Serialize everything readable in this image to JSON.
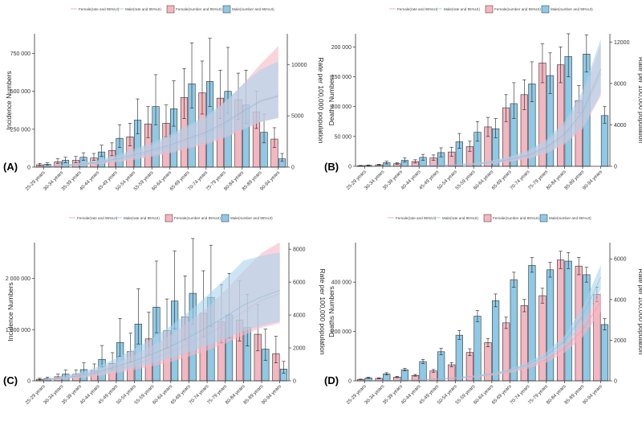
{
  "colors": {
    "female_bar": "#f4b6c0",
    "male_bar": "#8ec9e6",
    "female_band": "#f7b7c4",
    "male_band": "#a9d4ec",
    "bar_stroke": "#333333",
    "axis": "#333333"
  },
  "legend": {
    "female_rate": "Female(rate and 95%UI)",
    "male_rate": "Male(rate and 95%UI)",
    "female_number": "Female(number and 95%UI)",
    "male_number": "Male(number and 95%UI)"
  },
  "chart_data": [
    {
      "type": "bar",
      "panel_label": "(A)",
      "ylabel": "Incidence Numbers",
      "y2label": "Rate per 100,000 population",
      "categories": [
        "25-29 years",
        "30-34 years",
        "35-39 years",
        "40-44 years",
        "45-49 years",
        "50-54 years",
        "55-59 years",
        "60-64 years",
        "65-69 years",
        "70-74 years",
        "75-79 years",
        "80-84 years",
        "85-89 years",
        "90-94 years"
      ],
      "ylim": [
        0,
        880000
      ],
      "yticks": [
        0,
        250000,
        500000,
        750000
      ],
      "ytick_labels": [
        "0",
        "250 000",
        "500 000",
        "750 000"
      ],
      "y2lim": [
        0,
        13000
      ],
      "y2ticks": [
        0,
        5000,
        10000
      ],
      "y2tick_labels": [
        "0",
        "5000",
        "10000"
      ],
      "series": [
        {
          "name": "Female(number and 95%UI)",
          "values": [
            15000,
            35000,
            45000,
            60000,
            110000,
            200000,
            285000,
            290000,
            460000,
            490000,
            455000,
            445000,
            365000,
            185000
          ],
          "lower": [
            10000,
            25000,
            30000,
            45000,
            75000,
            140000,
            195000,
            200000,
            320000,
            350000,
            320000,
            315000,
            255000,
            130000
          ],
          "upper": [
            25000,
            55000,
            70000,
            90000,
            160000,
            290000,
            400000,
            410000,
            650000,
            700000,
            640000,
            620000,
            500000,
            260000
          ]
        },
        {
          "name": "Male(number and 95%UI)",
          "values": [
            18000,
            45000,
            65000,
            100000,
            190000,
            310000,
            400000,
            385000,
            550000,
            565000,
            500000,
            410000,
            230000,
            55000
          ],
          "lower": [
            12000,
            30000,
            45000,
            70000,
            130000,
            220000,
            280000,
            270000,
            390000,
            400000,
            355000,
            290000,
            160000,
            38000
          ],
          "upper": [
            28000,
            65000,
            95000,
            145000,
            280000,
            450000,
            610000,
            570000,
            820000,
            850000,
            790000,
            640000,
            350000,
            90000
          ]
        },
        {
          "name": "Female(rate and 95%UI)",
          "values": [
            50,
            120,
            220,
            380,
            650,
            1000,
            1450,
            1950,
            2600,
            3200,
            4100,
            5300,
            6500,
            7000
          ],
          "lower": [
            30,
            80,
            150,
            260,
            450,
            700,
            1000,
            1350,
            1800,
            2200,
            2800,
            3600,
            4400,
            4800
          ],
          "upper": [
            80,
            180,
            320,
            550,
            950,
            1500,
            2150,
            2900,
            3900,
            4800,
            6200,
            8000,
            10000,
            11800
          ]
        },
        {
          "name": "Male(rate and 95%UI)",
          "values": [
            60,
            150,
            280,
            470,
            800,
            1200,
            1650,
            2150,
            2800,
            3400,
            4300,
            5400,
            6400,
            6900
          ],
          "lower": [
            40,
            100,
            190,
            320,
            550,
            820,
            1130,
            1480,
            1930,
            2350,
            2950,
            3700,
            4400,
            4800
          ],
          "upper": [
            90,
            220,
            400,
            680,
            1150,
            1750,
            2400,
            3150,
            4100,
            5000,
            6300,
            8000,
            9500,
            10300
          ]
        }
      ]
    },
    {
      "type": "bar",
      "panel_label": "(B)",
      "ylabel": "Deaths Numbers",
      "y2label": "Rate per 100,000 population",
      "categories": [
        "25-29 years",
        "30-34 years",
        "35-39 years",
        "40-44 years",
        "45-49 years",
        "50-54 years",
        "55-59 years",
        "60-64 years",
        "65-69 years",
        "70-74 years",
        "75-79 years",
        "80-84 years",
        "85-89 years",
        "90-94 years"
      ],
      "ylim": [
        0,
        222000
      ],
      "yticks": [
        0,
        50000,
        100000,
        150000,
        200000
      ],
      "ytick_labels": [
        "0",
        "50 000",
        "100 000",
        "150 000",
        "200 000"
      ],
      "y2lim": [
        0,
        12800
      ],
      "y2ticks": [
        0,
        4000,
        8000,
        12000
      ],
      "y2tick_labels": [
        "0",
        "4000",
        "8000",
        "12000"
      ],
      "series": [
        {
          "name": "Female(number and 95%UI)",
          "values": [
            1000,
            2500,
            4500,
            8000,
            14000,
            24000,
            33000,
            66000,
            98000,
            120000,
            173000,
            170000,
            110000,
            0
          ],
          "lower": [
            600,
            1800,
            3200,
            5500,
            10000,
            17000,
            25000,
            50000,
            75000,
            95000,
            140000,
            140000,
            90000,
            0
          ],
          "upper": [
            1500,
            3500,
            6000,
            11000,
            19000,
            32000,
            42000,
            82000,
            120000,
            145000,
            205000,
            200000,
            135000,
            0
          ]
        },
        {
          "name": "Male(number and 95%UI)",
          "values": [
            1500,
            6000,
            10000,
            15000,
            23000,
            41000,
            57000,
            63000,
            105000,
            138000,
            152000,
            184000,
            188000,
            85000
          ],
          "lower": [
            1000,
            4000,
            7000,
            10000,
            16000,
            30000,
            42000,
            48000,
            80000,
            108000,
            122000,
            150000,
            158000,
            72000
          ],
          "upper": [
            2200,
            8500,
            14000,
            20000,
            31000,
            55000,
            75000,
            80000,
            140000,
            175000,
            190000,
            222000,
            220000,
            100000
          ]
        },
        {
          "name": "Female(rate and 95%UI)",
          "values": [
            5,
            10,
            20,
            40,
            70,
            120,
            200,
            350,
            600,
            1000,
            1700,
            2900,
            5000,
            9000
          ],
          "lower": [
            3,
            7,
            14,
            28,
            50,
            85,
            140,
            250,
            430,
            720,
            1220,
            2100,
            3600,
            6800
          ],
          "upper": [
            8,
            15,
            28,
            56,
            98,
            165,
            280,
            490,
            840,
            1400,
            2350,
            4000,
            6800,
            11800
          ]
        },
        {
          "name": "Male(rate and 95%UI)",
          "values": [
            6,
            12,
            25,
            48,
            85,
            140,
            230,
            400,
            680,
            1100,
            1850,
            3100,
            5300,
            9400
          ],
          "lower": [
            4,
            8,
            17,
            34,
            60,
            100,
            165,
            290,
            490,
            800,
            1330,
            2250,
            3800,
            7000
          ],
          "upper": [
            9,
            17,
            35,
            67,
            118,
            195,
            320,
            560,
            950,
            1540,
            2580,
            4300,
            7300,
            12300
          ]
        }
      ]
    },
    {
      "type": "bar",
      "panel_label": "(C)",
      "ylabel": "Incidence Numbers",
      "y2label": "Rate per 100,000 population",
      "categories": [
        "25-29 years",
        "30-34 years",
        "35-39 years",
        "40-44 years",
        "45-49 years",
        "50-54 years",
        "55-59 years",
        "60-64 years",
        "65-69 years",
        "70-74 years",
        "75-79 years",
        "80-84 years",
        "85-89 years",
        "90-94 years"
      ],
      "ylim": [
        0,
        2700000
      ],
      "yticks": [
        0,
        1000000,
        2000000
      ],
      "ytick_labels": [
        "0",
        "1 000 000",
        "2 000 000"
      ],
      "y2lim": [
        0,
        8400
      ],
      "y2ticks": [
        0,
        2000,
        4000,
        6000,
        8000
      ],
      "y2tick_labels": [
        "0",
        "2000",
        "4000",
        "6000",
        "8000"
      ],
      "series": [
        {
          "name": "Female(number and 95%UI)",
          "values": [
            30000,
            80000,
            130000,
            200000,
            340000,
            570000,
            820000,
            980000,
            1250000,
            1320000,
            1150000,
            1190000,
            910000,
            530000
          ],
          "lower": [
            18000,
            50000,
            80000,
            130000,
            220000,
            370000,
            520000,
            640000,
            800000,
            860000,
            740000,
            780000,
            590000,
            350000
          ],
          "upper": [
            50000,
            130000,
            210000,
            330000,
            550000,
            930000,
            1340000,
            1600000,
            2050000,
            2150000,
            1880000,
            1950000,
            1480000,
            870000
          ]
        },
        {
          "name": "Male(number and 95%UI)",
          "values": [
            45000,
            130000,
            220000,
            420000,
            750000,
            1110000,
            1440000,
            1560000,
            1710000,
            1630000,
            1290000,
            1040000,
            620000,
            230000
          ],
          "lower": [
            28000,
            80000,
            140000,
            270000,
            480000,
            720000,
            940000,
            1010000,
            1110000,
            1060000,
            840000,
            680000,
            400000,
            150000
          ],
          "upper": [
            72000,
            210000,
            350000,
            690000,
            1220000,
            1800000,
            2340000,
            2540000,
            2780000,
            2650000,
            2100000,
            1690000,
            1010000,
            380000
          ]
        },
        {
          "name": "Female(rate and 95%UI)",
          "values": [
            50,
            140,
            260,
            440,
            700,
            1000,
            1350,
            1750,
            2250,
            2800,
            3450,
            4200,
            4900,
            5300
          ],
          "lower": [
            30,
            90,
            170,
            290,
            460,
            660,
            890,
            1150,
            1480,
            1840,
            2270,
            2770,
            3230,
            3500
          ],
          "upper": [
            80,
            220,
            410,
            700,
            1110,
            1590,
            2150,
            2780,
            3580,
            4450,
            5480,
            6670,
            7780,
            8420
          ]
        },
        {
          "name": "Male(rate and 95%UI)",
          "values": [
            60,
            170,
            320,
            540,
            860,
            1220,
            1630,
            2100,
            2650,
            3250,
            3900,
            4600,
            5100,
            5500
          ],
          "lower": [
            40,
            110,
            210,
            355,
            565,
            800,
            1070,
            1380,
            1740,
            2140,
            2560,
            3020,
            3350,
            3610
          ],
          "upper": [
            95,
            270,
            510,
            860,
            1370,
            1940,
            2590,
            3340,
            4210,
            5170,
            6200,
            7310,
            7600,
            7800
          ]
        }
      ]
    },
    {
      "type": "bar",
      "panel_label": "(D)",
      "ylabel": "Deaths Numbers",
      "y2label": "Rate per 100,000 population",
      "categories": [
        "25-29 years",
        "30-34 years",
        "35-39 years",
        "40-44 years",
        "45-49 years",
        "50-54 years",
        "55-59 years",
        "60-64 years",
        "65-69 years",
        "70-74 years",
        "75-79 years",
        "80-84 years",
        "85-89 years",
        "90-94 years"
      ],
      "ylim": [
        0,
        560000
      ],
      "yticks": [
        0,
        200000,
        400000
      ],
      "ytick_labels": [
        "0",
        "200 000",
        "400 000"
      ],
      "y2lim": [
        0,
        6800
      ],
      "y2ticks": [
        0,
        2000,
        4000,
        6000
      ],
      "y2tick_labels": [
        "0",
        "2000",
        "4000",
        "6000"
      ],
      "series": [
        {
          "name": "Female(number and 95%UI)",
          "values": [
            6000,
            10000,
            15000,
            22000,
            40000,
            65000,
            115000,
            155000,
            235000,
            305000,
            345000,
            490000,
            465000,
            350000
          ],
          "lower": [
            5000,
            8500,
            13000,
            19000,
            35000,
            57000,
            102000,
            138000,
            212000,
            280000,
            315000,
            455000,
            430000,
            320000
          ],
          "upper": [
            7200,
            12000,
            18000,
            26000,
            46000,
            74000,
            130000,
            172000,
            258000,
            330000,
            375000,
            525000,
            500000,
            380000
          ]
        },
        {
          "name": "Male(number and 95%UI)",
          "values": [
            12000,
            28000,
            45000,
            78000,
            118000,
            185000,
            262000,
            325000,
            410000,
            468000,
            450000,
            485000,
            430000,
            228000
          ],
          "lower": [
            10000,
            24000,
            40000,
            70000,
            106000,
            168000,
            240000,
            300000,
            380000,
            440000,
            420000,
            455000,
            400000,
            206000
          ],
          "upper": [
            14500,
            33000,
            51000,
            87000,
            132000,
            204000,
            285000,
            352000,
            440000,
            500000,
            480000,
            520000,
            460000,
            252000
          ]
        },
        {
          "name": "Female(rate and 95%UI)",
          "values": [
            5,
            12,
            25,
            45,
            80,
            130,
            200,
            300,
            450,
            700,
            1050,
            1600,
            2500,
            3900
          ],
          "lower": [
            4,
            10,
            21,
            38,
            68,
            110,
            170,
            255,
            385,
            600,
            900,
            1380,
            2150,
            3400
          ],
          "upper": [
            6,
            14,
            29,
            52,
            92,
            150,
            230,
            345,
            515,
            800,
            1200,
            1820,
            2850,
            4400
          ]
        },
        {
          "name": "Male(rate and 95%UI)",
          "values": [
            6,
            15,
            30,
            55,
            95,
            150,
            230,
            340,
            520,
            800,
            1250,
            1950,
            3200,
            5100
          ],
          "lower": [
            5,
            13,
            26,
            47,
            82,
            130,
            200,
            295,
            450,
            690,
            1080,
            1690,
            2780,
            4500
          ],
          "upper": [
            7,
            17,
            34,
            63,
            108,
            170,
            260,
            385,
            590,
            910,
            1420,
            2210,
            3620,
            5700
          ]
        }
      ]
    }
  ]
}
